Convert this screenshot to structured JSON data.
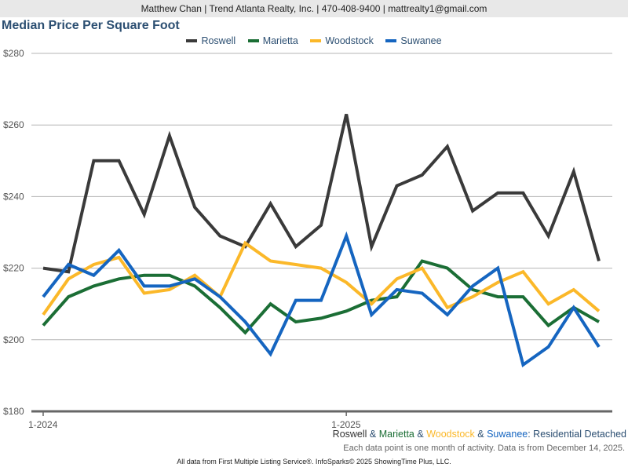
{
  "header": {
    "contact": "Matthew Chan | Trend Atlanta Realty, Inc. | 470-408-9400 | mattrealty1@gmail.com"
  },
  "chart_data": {
    "type": "line",
    "title": "Median Price Per Square Foot",
    "xlabel": "",
    "ylabel": "",
    "ylim": [
      180,
      280
    ],
    "yticks": [
      "$180",
      "$200",
      "$220",
      "$240",
      "$260",
      "$280"
    ],
    "ytick_values": [
      180,
      200,
      220,
      240,
      260,
      280
    ],
    "xtick_labels": [
      "1-2024",
      "1-2025"
    ],
    "xtick_indices": [
      0,
      12
    ],
    "grid": true,
    "legend_position": "top-center",
    "x": [
      "1-2024",
      "2-2024",
      "3-2024",
      "4-2024",
      "5-2024",
      "6-2024",
      "7-2024",
      "8-2024",
      "9-2024",
      "10-2024",
      "11-2024",
      "12-2024",
      "1-2025",
      "2-2025",
      "3-2025",
      "4-2025",
      "5-2025",
      "6-2025",
      "7-2025",
      "8-2025",
      "9-2025",
      "10-2025",
      "11-2025"
    ],
    "series": [
      {
        "name": "Roswell",
        "color": "#3a3a3a",
        "values": [
          220,
          219,
          250,
          250,
          235,
          257,
          237,
          229,
          226,
          238,
          226,
          232,
          263,
          226,
          243,
          246,
          254,
          236,
          241,
          241,
          229,
          247,
          222
        ]
      },
      {
        "name": "Marietta",
        "color": "#1b6e35",
        "values": [
          204,
          212,
          215,
          217,
          218,
          218,
          215,
          209,
          202,
          210,
          205,
          206,
          208,
          211,
          212,
          222,
          220,
          214,
          212,
          212,
          204,
          209,
          205
        ]
      },
      {
        "name": "Woodstock",
        "color": "#fbb829",
        "values": [
          207,
          217,
          221,
          223,
          213,
          214,
          218,
          212,
          227,
          222,
          221,
          220,
          216,
          210,
          217,
          220,
          209,
          212,
          216,
          219,
          210,
          214,
          208
        ]
      },
      {
        "name": "Suwanee",
        "color": "#1565c0",
        "values": [
          212,
          221,
          218,
          225,
          215,
          215,
          217,
          212,
          205,
          196,
          211,
          211,
          229,
          207,
          214,
          213,
          207,
          215,
          220,
          193,
          198,
          209,
          198
        ]
      }
    ]
  },
  "subtitle": {
    "series_names": [
      "Roswell",
      "Marietta",
      "Woodstock",
      "Suwanee"
    ],
    "separator": " & ",
    "suffix": ": Residential Detached",
    "note": "Each data point is one month of activity. Data is from December 14, 2025."
  },
  "footer": {
    "text": "All data from First Multiple Listing Service®. InfoSparks© 2025 ShowingTime Plus, LLC."
  }
}
